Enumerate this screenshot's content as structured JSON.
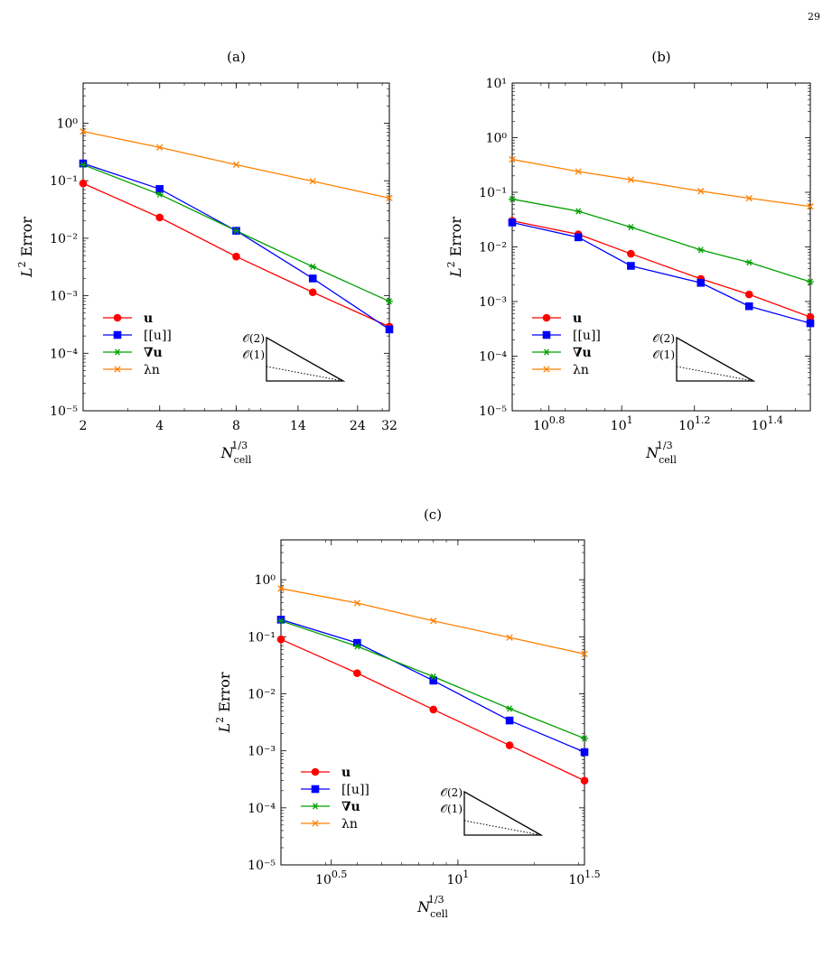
{
  "page_number": "29",
  "caption_fragment": "",
  "legend_labels": [
    "u",
    "[[u]]",
    "∇u",
    "λn"
  ],
  "order_labels": [
    "𝒪(2)",
    "𝒪(1)"
  ],
  "colors": {
    "u": "#ff0000",
    "jump": "#0000ff",
    "grad": "#00a000",
    "lambda": "#ff8000"
  },
  "chart_data": [
    {
      "type": "line",
      "title": "(a)",
      "xlabel": "N_cell^{1/3}",
      "ylabel": "L^2 Error",
      "xscale": "log",
      "yscale": "log",
      "xlim": [
        2,
        32
      ],
      "ylim": [
        1e-05,
        5
      ],
      "xticks": [
        2,
        4,
        8,
        14,
        24,
        32
      ],
      "xticklabels": [
        "2",
        "4",
        "8",
        "14",
        "24",
        "32"
      ],
      "yticks": [
        1e-05,
        0.0001,
        0.001,
        0.01,
        0.1,
        1
      ],
      "yticklabels": [
        "10⁻⁵",
        "10⁻⁴",
        "10⁻³",
        "10⁻²",
        "10⁻¹",
        "10⁰"
      ],
      "x": [
        2,
        4,
        8,
        16,
        32
      ],
      "series": [
        {
          "name": "u",
          "values": [
            0.09,
            0.023,
            0.0048,
            0.00115,
            0.00029
          ]
        },
        {
          "name": "[[u]]",
          "values": [
            0.2,
            0.072,
            0.0135,
            0.002,
            0.00026
          ]
        },
        {
          "name": "∇u",
          "values": [
            0.19,
            0.058,
            0.0135,
            0.0032,
            0.0008
          ]
        },
        {
          "name": "λn",
          "values": [
            0.72,
            0.38,
            0.19,
            0.098,
            0.05
          ]
        }
      ],
      "legend_position": "lower-left"
    },
    {
      "type": "line",
      "title": "(b)",
      "xlabel": "N_cell^{1/3}",
      "ylabel": "L^2 Error",
      "xscale": "log",
      "yscale": "log",
      "xlim": [
        5.0,
        33.0
      ],
      "ylim": [
        1e-05,
        10
      ],
      "xticks": [
        6.31,
        10,
        15.85,
        25.12
      ],
      "xticklabels": [
        "10^0.8",
        "10^1",
        "10^1.2",
        "10^1.4"
      ],
      "yticks": [
        1e-05,
        0.0001,
        0.001,
        0.01,
        0.1,
        1,
        10
      ],
      "yticklabels": [
        "10⁻⁵",
        "10⁻⁴",
        "10⁻³",
        "10⁻²",
        "10⁻¹",
        "10⁰",
        "10¹"
      ],
      "x": [
        5.0,
        7.6,
        10.6,
        16.5,
        22.4,
        33.0
      ],
      "series": [
        {
          "name": "u",
          "values": [
            0.03,
            0.017,
            0.0075,
            0.0026,
            0.00135,
            0.00052
          ]
        },
        {
          "name": "[[u]]",
          "values": [
            0.028,
            0.015,
            0.0045,
            0.0022,
            0.00082,
            0.0004
          ]
        },
        {
          "name": "∇u",
          "values": [
            0.075,
            0.045,
            0.023,
            0.0088,
            0.0052,
            0.0023
          ]
        },
        {
          "name": "λn",
          "values": [
            0.4,
            0.24,
            0.17,
            0.105,
            0.078,
            0.055
          ]
        }
      ],
      "legend_position": "lower-left"
    },
    {
      "type": "line",
      "title": "(c)",
      "xlabel": "N_cell^{1/3}",
      "ylabel": "L^2 Error",
      "xscale": "log",
      "yscale": "log",
      "xlim": [
        2.0,
        31.62
      ],
      "ylim": [
        1e-05,
        5
      ],
      "xticks": [
        3.162,
        10,
        31.62
      ],
      "xticklabels": [
        "10^0.5",
        "10^1",
        "10^1.5"
      ],
      "yticks": [
        1e-05,
        0.0001,
        0.001,
        0.01,
        0.1,
        1
      ],
      "yticklabels": [
        "10⁻⁵",
        "10⁻⁴",
        "10⁻³",
        "10⁻²",
        "10⁻¹",
        "10⁰"
      ],
      "x": [
        2.0,
        4.0,
        8.0,
        16.0,
        31.62
      ],
      "series": [
        {
          "name": "u",
          "values": [
            0.09,
            0.023,
            0.0053,
            0.00125,
            0.0003
          ]
        },
        {
          "name": "[[u]]",
          "values": [
            0.2,
            0.078,
            0.017,
            0.0034,
            0.00095
          ]
        },
        {
          "name": "∇u",
          "values": [
            0.19,
            0.068,
            0.02,
            0.0055,
            0.00165
          ]
        },
        {
          "name": "λn",
          "values": [
            0.7,
            0.39,
            0.19,
            0.097,
            0.05
          ]
        }
      ],
      "legend_position": "lower-left"
    }
  ]
}
